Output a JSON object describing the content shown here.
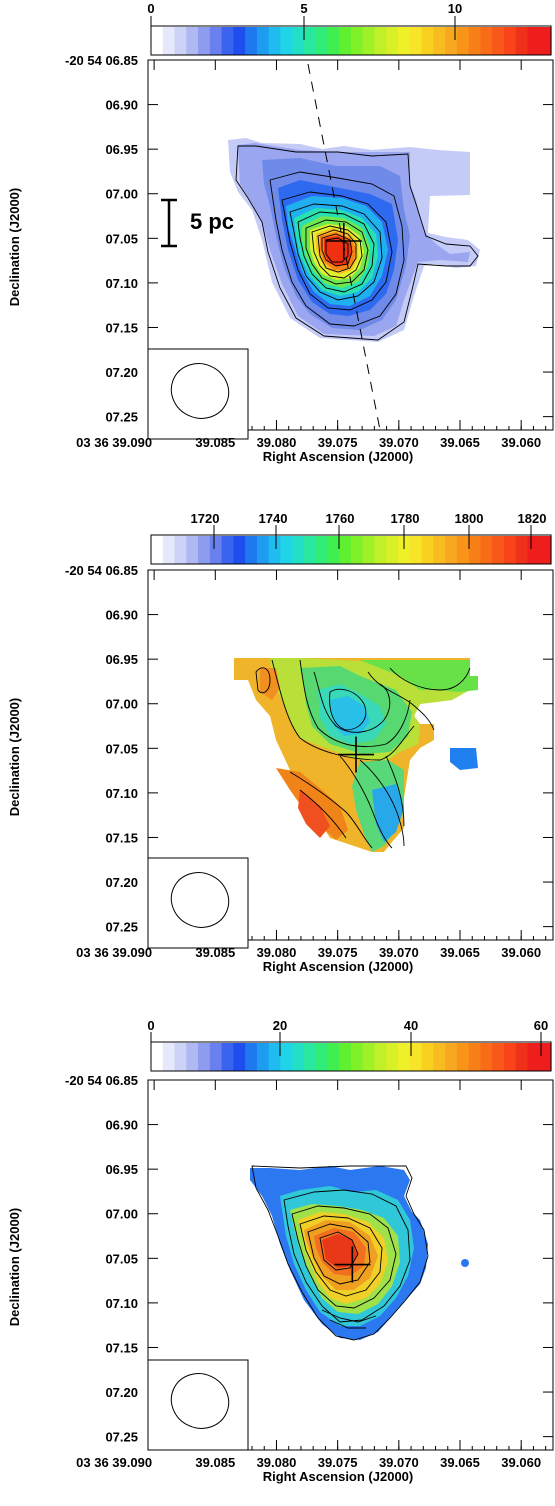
{
  "chart_data": [
    {
      "type": "heatmap",
      "panel": "top",
      "colorbar": {
        "ticks": [
          "0",
          "5",
          "10"
        ],
        "values": [
          0,
          5,
          10
        ],
        "range": [
          0,
          12.8
        ]
      },
      "x_ticks": [
        "03 36 39.090",
        "39.085",
        "39.080",
        "39.075",
        "39.070",
        "39.065",
        "39.060"
      ],
      "y_ticks": [
        "-20 54 06.85",
        "06.90",
        "06.95",
        "07.00",
        "07.05",
        "07.10",
        "07.15",
        "07.20",
        "07.25"
      ],
      "xlabel": "Right Ascension (J2000)",
      "ylabel": "Declination (J2000)",
      "scale_bar_label": "5 pc",
      "peak": {
        "ra": 39.0745,
        "dec": 7.053
      }
    },
    {
      "type": "heatmap",
      "panel": "middle",
      "colorbar": {
        "ticks": [
          "1720",
          "1740",
          "1760",
          "1780",
          "1800",
          "1820"
        ],
        "values": [
          1720,
          1740,
          1760,
          1780,
          1800,
          1820
        ],
        "range": [
          1700,
          1826
        ]
      },
      "x_ticks": [
        "03 36 39.090",
        "39.085",
        "39.080",
        "39.075",
        "39.070",
        "39.065",
        "39.060"
      ],
      "y_ticks": [
        "-20 54 06.85",
        "06.90",
        "06.95",
        "07.00",
        "07.05",
        "07.10",
        "07.15",
        "07.20",
        "07.25"
      ],
      "xlabel": "Right Ascension (J2000)",
      "ylabel": "Declination (J2000)",
      "peak": {
        "ra": 39.0735,
        "dec": 7.057
      }
    },
    {
      "type": "heatmap",
      "panel": "bottom",
      "colorbar": {
        "ticks": [
          "0",
          "20",
          "40",
          "60"
        ],
        "values": [
          0,
          20,
          40,
          60
        ],
        "range": [
          0,
          62
        ]
      },
      "x_ticks": [
        "03 36 39.090",
        "39.085",
        "39.080",
        "39.075",
        "39.070",
        "39.065",
        "39.060"
      ],
      "y_ticks": [
        "-20 54 06.85",
        "06.90",
        "06.95",
        "07.00",
        "07.05",
        "07.10",
        "07.15",
        "07.20",
        "07.25"
      ],
      "xlabel": "Right Ascension (J2000)",
      "ylabel": "Declination (J2000)",
      "peak": {
        "ra": 39.0738,
        "dec": 7.057
      }
    }
  ]
}
